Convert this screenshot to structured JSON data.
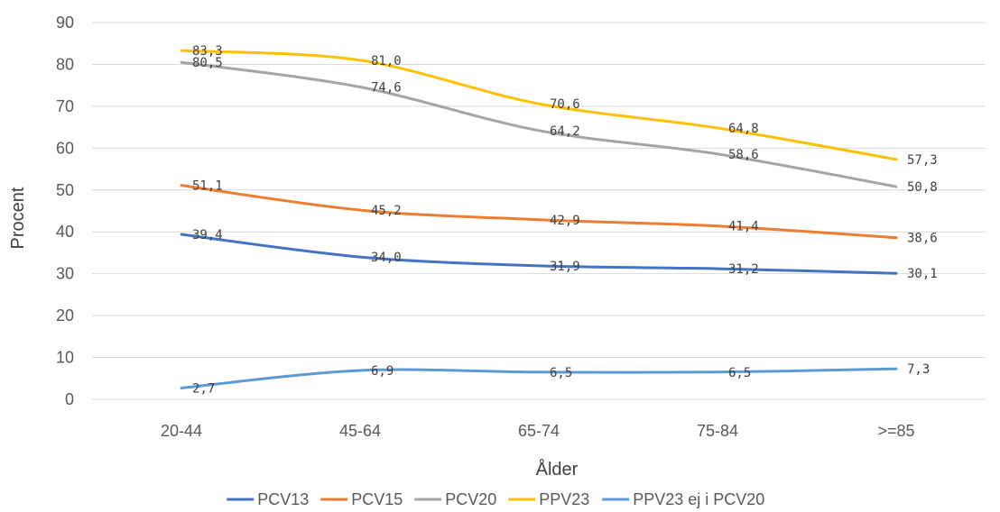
{
  "chart_data": {
    "type": "line",
    "title": "",
    "xlabel": "Ålder",
    "ylabel": "Procent",
    "ylim": [
      0,
      90
    ],
    "yticks": [
      0,
      10,
      20,
      30,
      40,
      50,
      60,
      70,
      80,
      90
    ],
    "grid": true,
    "legend_position": "bottom",
    "categories": [
      "20-44",
      "45-64",
      "65-74",
      "75-84",
      ">=85"
    ],
    "series": [
      {
        "name": "PCV13",
        "color": "#4472C4",
        "values": [
          39.4,
          34.0,
          31.9,
          31.2,
          30.1
        ],
        "labels": [
          "39,4",
          "34,0",
          "31,9",
          "31,2",
          "30,1"
        ]
      },
      {
        "name": "PCV15",
        "color": "#ED7D31",
        "values": [
          51.1,
          45.2,
          42.9,
          41.4,
          38.6
        ],
        "labels": [
          "51,1",
          "45,2",
          "42,9",
          "41,4",
          "38,6"
        ]
      },
      {
        "name": "PCV20",
        "color": "#A5A5A5",
        "values": [
          80.5,
          74.6,
          64.2,
          58.6,
          50.8
        ],
        "labels": [
          "80,5",
          "74,6",
          "64,2",
          "58,6",
          "50,8"
        ]
      },
      {
        "name": "PPV23",
        "color": "#FFC000",
        "values": [
          83.3,
          81.0,
          70.6,
          64.8,
          57.3
        ],
        "labels": [
          "83,3",
          "81,0",
          "70,6",
          "64,8",
          "57,3"
        ]
      },
      {
        "name": "PPV23 ej i PCV20",
        "color": "#5B9BD5",
        "values": [
          2.7,
          6.9,
          6.5,
          6.5,
          7.3
        ],
        "labels": [
          "2,7",
          "6,9",
          "6,5",
          "6,5",
          "7,3"
        ]
      }
    ]
  }
}
